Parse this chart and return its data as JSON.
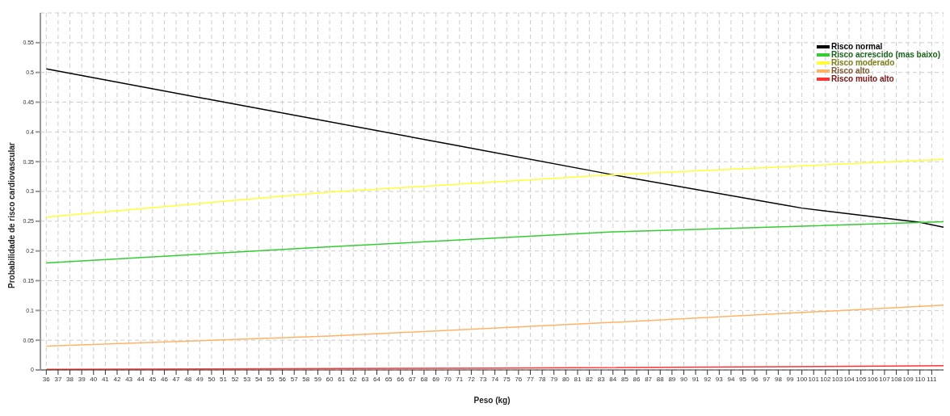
{
  "chart_data": {
    "type": "line",
    "xlabel": "Peso (kg)",
    "ylabel": "Probabilidade de risco cardiovascular",
    "series": [
      {
        "name": "Risco normal",
        "color": "#000000",
        "x": [
          36,
          50,
          70,
          84,
          100,
          110,
          112
        ],
        "values": [
          0.506,
          0.454,
          0.38,
          0.328,
          0.272,
          0.248,
          0.24
        ]
      },
      {
        "name": "Risco acrescido (mas baixo)",
        "color": "#33cc33",
        "x": [
          36,
          60,
          84,
          112
        ],
        "values": [
          0.18,
          0.207,
          0.232,
          0.249
        ]
      },
      {
        "name": "Risco moderado",
        "color": "#ffff33",
        "x": [
          36,
          60,
          84,
          112
        ],
        "values": [
          0.257,
          0.299,
          0.328,
          0.354
        ]
      },
      {
        "name": "Risco alto",
        "color": "#ffb366",
        "x": [
          36,
          60,
          84,
          112
        ],
        "values": [
          0.04,
          0.057,
          0.08,
          0.109
        ]
      },
      {
        "name": "Risco muito alto",
        "color": "#ff3333",
        "x": [
          36,
          74,
          112
        ],
        "values": [
          0.001,
          0.003,
          0.007
        ]
      }
    ],
    "xlim": [
      35.5,
      112
    ],
    "xticks": [
      36,
      37,
      38,
      39,
      40,
      41,
      42,
      43,
      44,
      45,
      46,
      47,
      48,
      49,
      50,
      51,
      52,
      53,
      54,
      55,
      56,
      57,
      58,
      59,
      60,
      61,
      62,
      63,
      64,
      65,
      66,
      67,
      68,
      69,
      70,
      71,
      72,
      73,
      74,
      75,
      76,
      77,
      78,
      79,
      80,
      81,
      82,
      83,
      84,
      85,
      86,
      87,
      88,
      89,
      90,
      91,
      92,
      93,
      94,
      95,
      96,
      97,
      98,
      99,
      100,
      101,
      102,
      103,
      104,
      105,
      106,
      107,
      108,
      109,
      110,
      111
    ],
    "ylim": [
      0,
      0.6
    ],
    "yticks": [
      0,
      0.05,
      0.1,
      0.15,
      0.2,
      0.25,
      0.3,
      0.35,
      0.4,
      0.45,
      0.5,
      0.55
    ],
    "grid": true,
    "legend": "top right",
    "marker": "none",
    "line_style": "solid"
  }
}
